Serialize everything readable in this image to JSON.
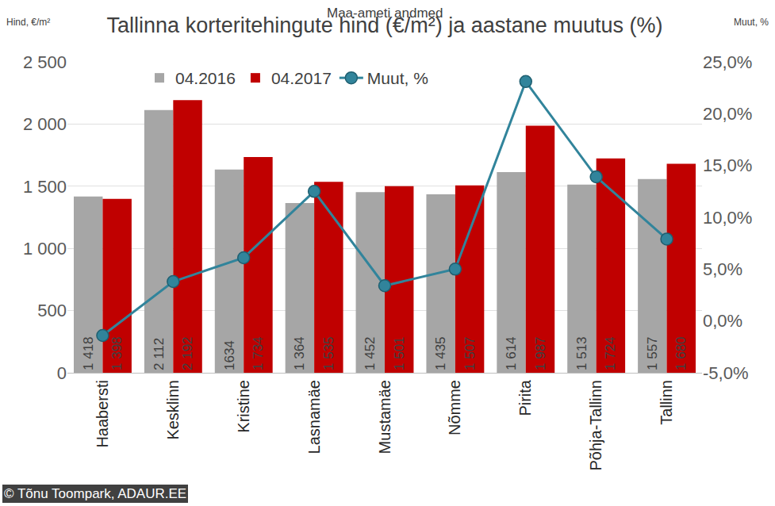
{
  "chart_data": {
    "type": "bar",
    "title": "Tallinna korteritehingute hind (€/m²) ja aastane muutus (%)",
    "subtitle": "Maa-ameti andmed",
    "y_label": "Hind, €/m²",
    "y2_label": "Muut, %",
    "source": "© Tõnu Toompark, ADAUR.EE",
    "categories": [
      "Haabersti",
      "Kesklinn",
      "Kristine",
      "Lasnamäe",
      "Mustamäe",
      "Nõmme",
      "Pirita",
      "Põhja-Tallinn",
      "Tallinn"
    ],
    "series": [
      {
        "name": "04.2016",
        "type": "bar",
        "color": "#a6a6a6",
        "values": [
          1418,
          2112,
          1634,
          1364,
          1452,
          1435,
          1614,
          1513,
          1557
        ],
        "value_labels": [
          "1 418",
          "2 112",
          "1634",
          "1 364",
          "1 452",
          "1 435",
          "1 614",
          "1 513",
          "1 557"
        ]
      },
      {
        "name": "04.2017",
        "type": "bar",
        "color": "#c00000",
        "values": [
          1398,
          2192,
          1734,
          1535,
          1501,
          1507,
          1987,
          1724,
          1680
        ],
        "value_labels": [
          "1 398",
          "2 192",
          "1 734",
          "1 535",
          "1 501",
          "1 507",
          "1 987",
          "1 724",
          "1 680"
        ]
      },
      {
        "name": "Muut, %",
        "type": "line",
        "axis": "y2",
        "color": "#31849b",
        "marker": "circle",
        "values": [
          -1.4,
          3.8,
          6.1,
          12.5,
          3.4,
          5.0,
          23.1,
          13.9,
          7.9
        ]
      }
    ],
    "ylim": [
      0,
      2500
    ],
    "yticks": [
      0,
      500,
      {
        "value": 1000,
        "label": "1 000"
      },
      {
        "value": 1500,
        "label": "1 500"
      },
      {
        "value": 2000,
        "label": "2 000"
      },
      {
        "value": 2500,
        "label": "2 500"
      }
    ],
    "y2lim": [
      -5,
      25
    ],
    "y2ticks": [
      {
        "value": -5,
        "label": "-5,0%"
      },
      {
        "value": 0,
        "label": "0,0%"
      },
      {
        "value": 5,
        "label": "5,0%"
      },
      {
        "value": 10,
        "label": "10,0%"
      },
      {
        "value": 15,
        "label": "15,0%"
      },
      {
        "value": 20,
        "label": "20,0%"
      },
      {
        "value": 25,
        "label": "25,0%"
      }
    ],
    "grid": true,
    "legend": "top",
    "data_labels": true
  }
}
